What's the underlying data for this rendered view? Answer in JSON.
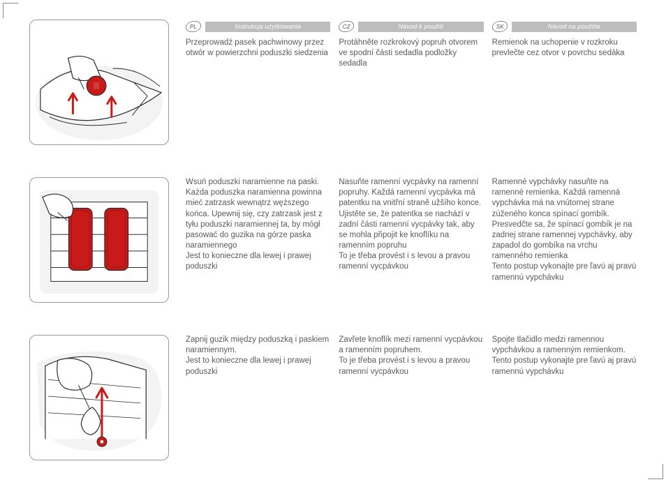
{
  "langs": {
    "pl": {
      "code": "PL",
      "header": "Instrukcja użytkowania"
    },
    "cz": {
      "code": "CZ",
      "header": "Návod k použití"
    },
    "sk": {
      "code": "SK",
      "header": "Návod na použitie"
    }
  },
  "rows": [
    {
      "pl": "Przeprowadź pasek pachwinowy przez otwór w powierzchni poduszki siedzenia",
      "cz": "Protáhněte rozkrokový popruh otvorem ve spodní části sedadla podložky sedadla",
      "sk": "Remienok na uchopenie v rozkroku prevlečte cez otvor v povrchu sedáka"
    },
    {
      "pl": "Wsuń poduszki naramienne na paski. Każda poduszka naramienna powinna mieć zatrzask wewnątrz węższego końca. Upewnij się, czy zatrzask jest z tyłu poduszki naramiennej ta, by mógł pasować do guzika na górze paska naramiennego\nJest to konieczne dla lewej i prawej poduszki",
      "cz": "Nasuňte ramenní vycpávky na ramenní popruhy.  Každá ramenní vycpávka má patentku na vnitřní straně užšího konce. Ujistěte se, že patentka se nachází v zadní části ramenní vycpávky tak, aby se mohla připojit ke knoflíku na ramenním popruhu\nTo je třeba provést i s levou a pravou ramenní vycpávkou",
      "sk": "Ramenné vypchávky nasuňte na ramenné remienka. Každá ramenná vypchávka má na vnútornej strane zúženého konca spínací gombík. Presvedčte sa, že spínací gombík je na zadnej strane ramennej vypchávky, aby zapadol do gombíka na vrchu ramenného remienka\nTento postup vykonajte pre ľavú aj pravú ramennú vypchávku"
    },
    {
      "pl": "Zapnij guzik między poduszką i paskiem naramiennym.\nJest to konieczne dla lewej i prawej poduszki",
      "cz": "Zavřete knoflík mezi ramenní vycpávkou a ramenním popruhem.\nTo je třeba provést i s levou a pravou ramenní vycpávkou",
      "sk": "Spojte tlačidlo medzi ramennou vypchávkou a ramenným remienkom.\nTento postup vykonajte pre ľavú aj pravú ramennú vypchávku"
    }
  ],
  "colors": {
    "accent": "#c91a1a",
    "line": "#2b2b2b",
    "wash": "#f0f0f0",
    "text": "#5a5a5a",
    "strip": "#bdbdbd"
  }
}
